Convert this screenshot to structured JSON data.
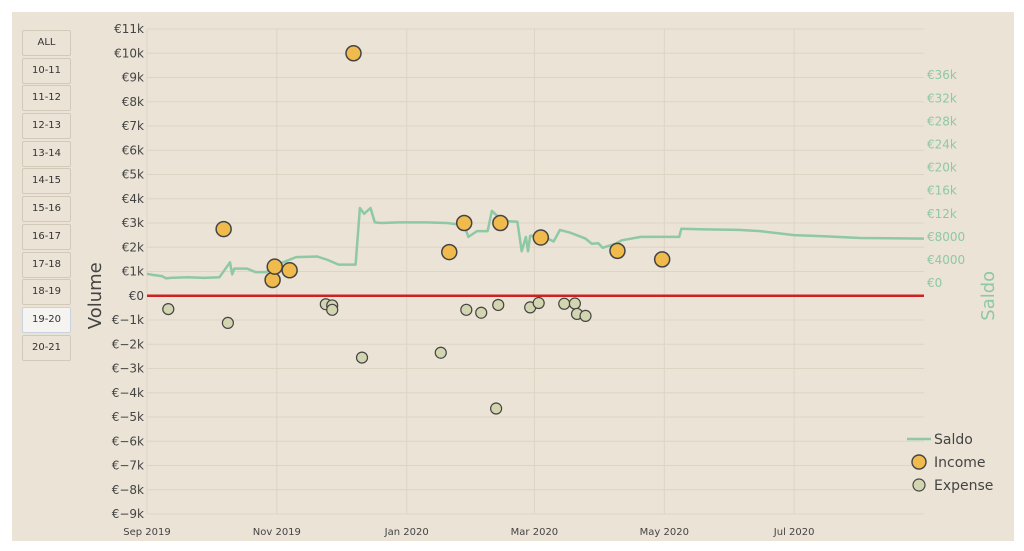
{
  "range_buttons": [
    {
      "label": "ALL",
      "active": false
    },
    {
      "label": "10-11",
      "active": false
    },
    {
      "label": "11-12",
      "active": false
    },
    {
      "label": "12-13",
      "active": false
    },
    {
      "label": "13-14",
      "active": false
    },
    {
      "label": "14-15",
      "active": false
    },
    {
      "label": "15-16",
      "active": false
    },
    {
      "label": "16-17",
      "active": false
    },
    {
      "label": "17-18",
      "active": false
    },
    {
      "label": "18-19",
      "active": false
    },
    {
      "label": "19-20",
      "active": true
    },
    {
      "label": "20-21",
      "active": false
    }
  ],
  "colors": {
    "panel_bg": "#ebe3d6",
    "saldo": "#8ec8a4",
    "income": "#f0bb4c",
    "expense": "#d3d4b0",
    "marker_edge": "#444444",
    "zero_line": "#cc2222",
    "grid": "#ddd4c4"
  },
  "chart_data": {
    "type": "scatter",
    "ylabel": "Volume",
    "y2label": "Saldo",
    "x_range": [
      "2019-09-01",
      "2020-08-31"
    ],
    "ylim": [
      -9000,
      11000
    ],
    "y2lim": [
      -40000,
      44000
    ],
    "x_ticks": [
      {
        "date": "2019-09-01",
        "label": "Sep 2019"
      },
      {
        "date": "2019-11-01",
        "label": "Nov 2019"
      },
      {
        "date": "2020-01-01",
        "label": "Jan 2020"
      },
      {
        "date": "2020-03-01",
        "label": "Mar 2020"
      },
      {
        "date": "2020-05-01",
        "label": "May 2020"
      },
      {
        "date": "2020-07-01",
        "label": "Jul 2020"
      }
    ],
    "y_ticks": [
      {
        "v": 11000,
        "label": "€11k"
      },
      {
        "v": 10000,
        "label": "€10k"
      },
      {
        "v": 9000,
        "label": "€9k"
      },
      {
        "v": 8000,
        "label": "€8k"
      },
      {
        "v": 7000,
        "label": "€7k"
      },
      {
        "v": 6000,
        "label": "€6k"
      },
      {
        "v": 5000,
        "label": "€5k"
      },
      {
        "v": 4000,
        "label": "€4k"
      },
      {
        "v": 3000,
        "label": "€3k"
      },
      {
        "v": 2000,
        "label": "€2k"
      },
      {
        "v": 1000,
        "label": "€1k"
      },
      {
        "v": 0,
        "label": "€0"
      },
      {
        "v": -1000,
        "label": "€−1k"
      },
      {
        "v": -2000,
        "label": "€−2k"
      },
      {
        "v": -3000,
        "label": "€−3k"
      },
      {
        "v": -4000,
        "label": "€−4k"
      },
      {
        "v": -5000,
        "label": "€−5k"
      },
      {
        "v": -6000,
        "label": "€−6k"
      },
      {
        "v": -7000,
        "label": "€−7k"
      },
      {
        "v": -8000,
        "label": "€−8k"
      },
      {
        "v": -9000,
        "label": "€−9k"
      }
    ],
    "y2_ticks": [
      {
        "v": 36000,
        "label": "€36k"
      },
      {
        "v": 32000,
        "label": "€32k"
      },
      {
        "v": 28000,
        "label": "€28k"
      },
      {
        "v": 24000,
        "label": "€24k"
      },
      {
        "v": 20000,
        "label": "€20k"
      },
      {
        "v": 16000,
        "label": "€16k"
      },
      {
        "v": 12000,
        "label": "€12k"
      },
      {
        "v": 8000,
        "label": "€8000"
      },
      {
        "v": 4000,
        "label": "€4000"
      },
      {
        "v": 0,
        "label": "€0"
      }
    ],
    "legend": {
      "position": "bottom-right",
      "items": [
        "Saldo",
        "Income",
        "Expense"
      ]
    },
    "series": [
      {
        "name": "Saldo",
        "type": "line",
        "axis": "y2",
        "points": [
          [
            "2019-09-01",
            1600
          ],
          [
            "2019-09-04",
            1400
          ],
          [
            "2019-09-08",
            1200
          ],
          [
            "2019-09-10",
            800
          ],
          [
            "2019-09-12",
            900
          ],
          [
            "2019-09-20",
            1000
          ],
          [
            "2019-09-28",
            900
          ],
          [
            "2019-10-05",
            1000
          ],
          [
            "2019-10-10",
            3600
          ],
          [
            "2019-10-11",
            1500
          ],
          [
            "2019-10-12",
            2500
          ],
          [
            "2019-10-18",
            2500
          ],
          [
            "2019-10-22",
            1900
          ],
          [
            "2019-10-27",
            1900
          ],
          [
            "2019-10-31",
            3000
          ],
          [
            "2019-11-10",
            4500
          ],
          [
            "2019-11-20",
            4600
          ],
          [
            "2019-11-25",
            4000
          ],
          [
            "2019-11-30",
            3200
          ],
          [
            "2019-12-08",
            3200
          ],
          [
            "2019-12-10",
            13000
          ],
          [
            "2019-12-12",
            12000
          ],
          [
            "2019-12-15",
            13000
          ],
          [
            "2019-12-17",
            10500
          ],
          [
            "2019-12-20",
            10400
          ],
          [
            "2019-12-28",
            10500
          ],
          [
            "2020-01-10",
            10500
          ],
          [
            "2020-01-20",
            10400
          ],
          [
            "2020-01-28",
            10000
          ],
          [
            "2020-01-30",
            8000
          ],
          [
            "2020-02-03",
            9000
          ],
          [
            "2020-02-08",
            9000
          ],
          [
            "2020-02-10",
            12500
          ],
          [
            "2020-02-15",
            10800
          ],
          [
            "2020-02-22",
            10600
          ],
          [
            "2020-02-24",
            5500
          ],
          [
            "2020-02-26",
            8000
          ],
          [
            "2020-02-27",
            5500
          ],
          [
            "2020-02-28",
            8200
          ],
          [
            "2020-03-05",
            8100
          ],
          [
            "2020-03-10",
            7200
          ],
          [
            "2020-03-13",
            9200
          ],
          [
            "2020-03-18",
            8700
          ],
          [
            "2020-03-25",
            7700
          ],
          [
            "2020-03-28",
            6800
          ],
          [
            "2020-03-31",
            6900
          ],
          [
            "2020-04-02",
            6100
          ],
          [
            "2020-04-08",
            6800
          ],
          [
            "2020-04-11",
            7400
          ],
          [
            "2020-04-20",
            8000
          ],
          [
            "2020-05-08",
            8000
          ],
          [
            "2020-05-09",
            9400
          ],
          [
            "2020-05-20",
            9300
          ],
          [
            "2020-06-05",
            9200
          ],
          [
            "2020-06-15",
            9000
          ],
          [
            "2020-07-01",
            8300
          ],
          [
            "2020-07-15",
            8100
          ],
          [
            "2020-08-01",
            7800
          ],
          [
            "2020-08-31",
            7700
          ]
        ]
      },
      {
        "name": "Income",
        "type": "scatter",
        "axis": "y",
        "points": [
          [
            "2019-10-07",
            2750
          ],
          [
            "2019-10-30",
            650
          ],
          [
            "2019-10-31",
            1200
          ],
          [
            "2019-11-07",
            1050
          ],
          [
            "2019-12-07",
            10000
          ],
          [
            "2020-01-21",
            1800
          ],
          [
            "2020-01-28",
            3000
          ],
          [
            "2020-02-14",
            3000
          ],
          [
            "2020-03-04",
            2400
          ],
          [
            "2020-04-09",
            1850
          ],
          [
            "2020-04-30",
            1500
          ]
        ]
      },
      {
        "name": "Expense",
        "type": "scatter",
        "axis": "y",
        "points": [
          [
            "2019-09-11",
            -550
          ],
          [
            "2019-10-09",
            -1120
          ],
          [
            "2019-11-24",
            -350
          ],
          [
            "2019-11-27",
            -400
          ],
          [
            "2019-11-27",
            -580
          ],
          [
            "2019-12-11",
            -2550
          ],
          [
            "2020-01-17",
            -2350
          ],
          [
            "2020-01-29",
            -580
          ],
          [
            "2020-02-05",
            -700
          ],
          [
            "2020-02-12",
            -4650
          ],
          [
            "2020-02-13",
            -380
          ],
          [
            "2020-02-28",
            -480
          ],
          [
            "2020-03-03",
            -300
          ],
          [
            "2020-03-15",
            -330
          ],
          [
            "2020-03-20",
            -320
          ],
          [
            "2020-03-21",
            -750
          ],
          [
            "2020-03-25",
            -830
          ]
        ]
      }
    ]
  }
}
